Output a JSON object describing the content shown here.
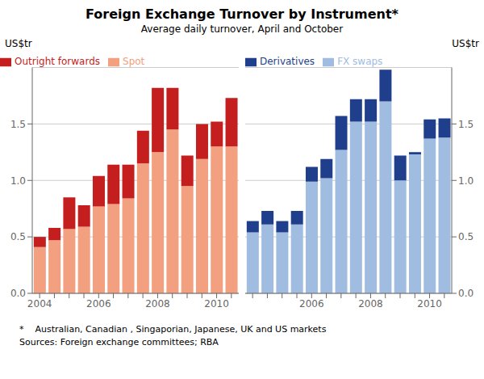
{
  "chart_data": [
    {
      "type": "bar",
      "title": "Foreign Exchange Turnover by Instrument*",
      "subtitle": "Average daily turnover, April and October",
      "annotations": [
        "*    Australian, Canadian , Singaporian, Japanese, UK and US markets",
        "Sources: Foreign exchange committees; RBA"
      ],
      "ylabel": "US$tr",
      "categories": [
        "2004",
        null,
        null,
        null,
        "2006",
        null,
        null,
        null,
        "2008",
        null,
        null,
        null,
        "2010",
        null
      ],
      "series": [
        {
          "name": "Spot",
          "color": "#F2A080",
          "values": [
            0.41,
            0.47,
            0.57,
            0.59,
            0.77,
            0.79,
            0.84,
            1.15,
            1.25,
            1.45,
            0.95,
            1.19,
            1.3,
            1.3
          ]
        },
        {
          "name": "Outright forwards",
          "color": "#C41E1E",
          "values": [
            0.09,
            0.11,
            0.28,
            0.19,
            0.27,
            0.35,
            0.3,
            0.29,
            0.57,
            0.37,
            0.27,
            0.31,
            0.22,
            0.43
          ]
        }
      ],
      "stacked": true,
      "ylim": [
        0.0,
        2.0
      ],
      "yticks": [
        {
          "value": 0,
          "label": "0.0"
        },
        0.5,
        {
          "value": 1,
          "label": "1.0"
        },
        1.5
      ],
      "grid": true,
      "legend": "upper left"
    },
    {
      "type": "bar",
      "ylabel": "US$tr",
      "categories": [
        null,
        null,
        null,
        null,
        "2006",
        null,
        null,
        null,
        "2008",
        null,
        null,
        null,
        "2010",
        null
      ],
      "series": [
        {
          "name": "FX swaps",
          "color": "#A0BCE0",
          "values": [
            0.54,
            0.61,
            0.54,
            0.61,
            0.99,
            1.02,
            1.27,
            1.52,
            1.52,
            1.7,
            1.0,
            1.23,
            1.37,
            1.38
          ]
        },
        {
          "name": "Derivatives",
          "color": "#1F3F8C",
          "values": [
            0.1,
            0.12,
            0.1,
            0.12,
            0.13,
            0.17,
            0.3,
            0.2,
            0.2,
            0.28,
            0.22,
            0.02,
            0.17,
            0.17
          ]
        }
      ],
      "stacked": true,
      "ylim": [
        0.0,
        2.0
      ],
      "yticks": [
        {
          "value": 0,
          "label": "0.0"
        },
        0.5,
        {
          "value": 1,
          "label": "1.0"
        },
        1.5
      ],
      "grid": true,
      "legend": "upper left"
    }
  ]
}
